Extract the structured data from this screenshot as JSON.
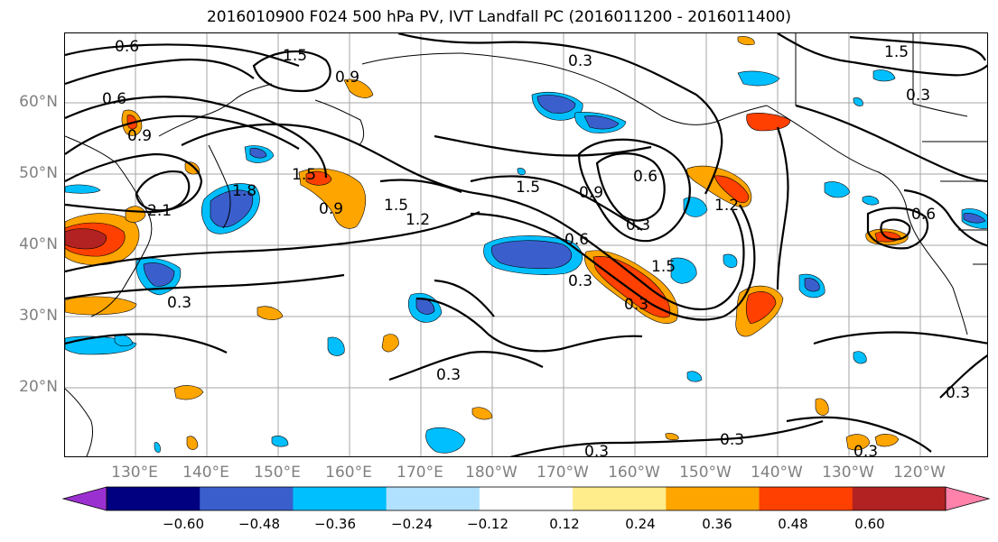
{
  "title": "2016010900 F024 500 hPa PV, IVT Landfall PC (2016011200 - 2016011400)",
  "axes": {
    "lat_labels": [
      "60°N",
      "50°N",
      "40°N",
      "30°N",
      "20°N"
    ],
    "lon_labels": [
      "130°E",
      "140°E",
      "150°E",
      "160°E",
      "170°E",
      "180°W",
      "170°W",
      "160°W",
      "150°W",
      "140°W",
      "130°W",
      "120°W"
    ]
  },
  "contours": {
    "labels": [
      "0.6",
      "1.5",
      "0.9",
      "0.3",
      "0.6",
      "0.9",
      "2.1",
      "1.8",
      "1.5",
      "0.9",
      "1.5",
      "1.2",
      "1.5",
      "0.9",
      "0.6",
      "0.3",
      "0.6",
      "0.3",
      "1.2",
      "1.5",
      "0.3",
      "0.6",
      "0.3",
      "0.3",
      "0.3",
      "0.3",
      "0.3",
      "1.5",
      "0.3",
      "0.3"
    ]
  },
  "colorbar": {
    "colors": [
      "#9b30d0",
      "#000080",
      "#3a5fcd",
      "#00bfff",
      "#b0e2ff",
      "#ffffff",
      "#ffec8b",
      "#ffa500",
      "#ff4000",
      "#b22222",
      "#ff82ab"
    ],
    "tick_labels": [
      "−0.60",
      "−0.48",
      "−0.36",
      "−0.24",
      "−0.12",
      "0.12",
      "0.24",
      "0.36",
      "0.48",
      "0.60"
    ]
  }
}
